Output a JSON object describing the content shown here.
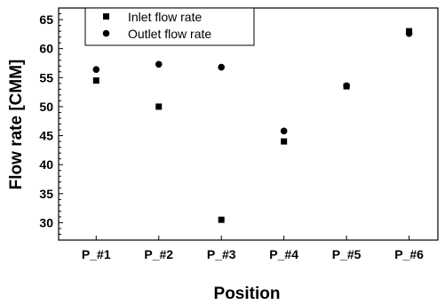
{
  "chart_data": {
    "type": "scatter",
    "title": "",
    "xlabel": "Position",
    "ylabel": "Flow rate [CMM]",
    "categories": [
      "P_#1",
      "P_#2",
      "P_#3",
      "P_#4",
      "P_#5",
      "P_#6"
    ],
    "ylim": [
      27,
      67
    ],
    "yticks": [
      30,
      35,
      40,
      45,
      50,
      55,
      60,
      65
    ],
    "grid": false,
    "legend_position": "top-left",
    "series": [
      {
        "name": "Inlet flow rate",
        "marker": "square",
        "color": "#000000",
        "values": [
          54.5,
          50.0,
          30.5,
          44.0,
          53.5,
          63.0
        ]
      },
      {
        "name": "Outlet flow rate",
        "marker": "circle",
        "color": "#000000",
        "values": [
          56.4,
          57.3,
          56.8,
          45.8,
          53.6,
          62.6
        ]
      }
    ]
  }
}
